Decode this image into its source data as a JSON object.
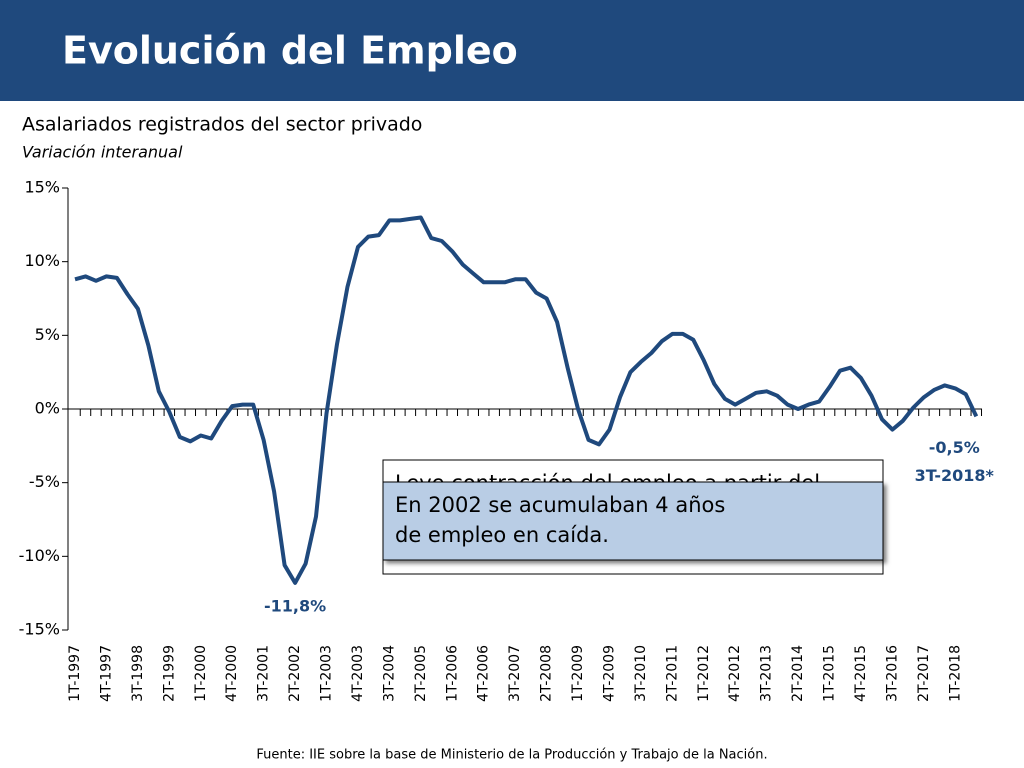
{
  "chart_data": {
    "type": "line",
    "title": "Evolución del Empleo",
    "subtitle": "Asalariados registrados del sector privado",
    "y_label": "Variación interanual",
    "source": "Fuente: IIE sobre la base de Ministerio de la Producción y Trabajo de la Nación.",
    "categories": [
      "1T-1997",
      null,
      null,
      "4T-1997",
      null,
      null,
      "3T-1998",
      null,
      null,
      "2T-1999",
      null,
      null,
      "1T-2000",
      null,
      null,
      "4T-2000",
      null,
      null,
      "3T-2001",
      null,
      null,
      "2T-2002",
      null,
      null,
      "1T-2003",
      null,
      null,
      "4T-2003",
      null,
      null,
      "3T-2004",
      null,
      null,
      "2T-2005",
      null,
      null,
      "1T-2006",
      null,
      null,
      "4T-2006",
      null,
      null,
      "3T-2007",
      null,
      null,
      "2T-2008",
      null,
      null,
      "1T-2009",
      null,
      null,
      "4T-2009",
      null,
      null,
      "3T-2010",
      null,
      null,
      "2T-2011",
      null,
      null,
      "1T-2012",
      null,
      null,
      "4T-2012",
      null,
      null,
      "3T-2013",
      null,
      null,
      "2T-2014",
      null,
      null,
      "1T-2015",
      null,
      null,
      "4T-2015",
      null,
      null,
      "3T-2016",
      null,
      null,
      "2T-2017",
      null,
      null,
      "1T-2018",
      null,
      null
    ],
    "series": [
      {
        "name": "Asalariados registrados del sector privado",
        "color": "#1f497d",
        "values": [
          8.8,
          9.0,
          8.7,
          9.0,
          8.9,
          7.8,
          6.8,
          4.3,
          1.2,
          -0.2,
          -1.9,
          -2.2,
          -1.8,
          -2.0,
          -0.8,
          0.2,
          0.3,
          0.3,
          -2.1,
          -5.6,
          -10.6,
          -11.8,
          -10.5,
          -7.3,
          -0.3,
          4.4,
          8.3,
          11.0,
          11.7,
          11.8,
          12.8,
          12.8,
          12.9,
          13.0,
          11.6,
          11.4,
          10.7,
          9.8,
          9.2,
          8.6,
          8.6,
          8.6,
          8.8,
          8.8,
          7.9,
          7.5,
          5.9,
          2.8,
          0.0,
          -2.1,
          -2.4,
          -1.4,
          0.8,
          2.5,
          3.2,
          3.8,
          4.6,
          5.1,
          5.1,
          4.7,
          3.3,
          1.7,
          0.7,
          0.3,
          0.7,
          1.1,
          1.2,
          0.9,
          0.3,
          0.0,
          0.3,
          0.5,
          1.5,
          2.6,
          2.8,
          2.1,
          0.9,
          -0.7,
          -1.4,
          -0.8,
          0.1,
          0.8,
          1.3,
          1.6,
          1.4,
          1.0,
          -0.5
        ]
      }
    ],
    "ylim": [
      -15,
      15
    ],
    "yticks": [
      {
        "value": -15,
        "label": "-15%"
      },
      {
        "value": -10,
        "label": "-10%"
      },
      {
        "value": -5,
        "label": "-5%"
      },
      {
        "value": 0,
        "label": "0%"
      },
      {
        "value": 5,
        "label": "5%"
      },
      {
        "value": 10,
        "label": "10%"
      },
      {
        "value": 15,
        "label": "15%"
      }
    ],
    "annotations": [
      {
        "text": "-11,8%",
        "index": 21
      },
      {
        "text": "-0,5%",
        "index": 86
      },
      {
        "text": "3T-2018*",
        "index": 86
      }
    ],
    "notes": [
      "Leve contracción del empleo a partir del",
      "En 2002 se acumulaban 4 años de empleo en caída."
    ]
  }
}
